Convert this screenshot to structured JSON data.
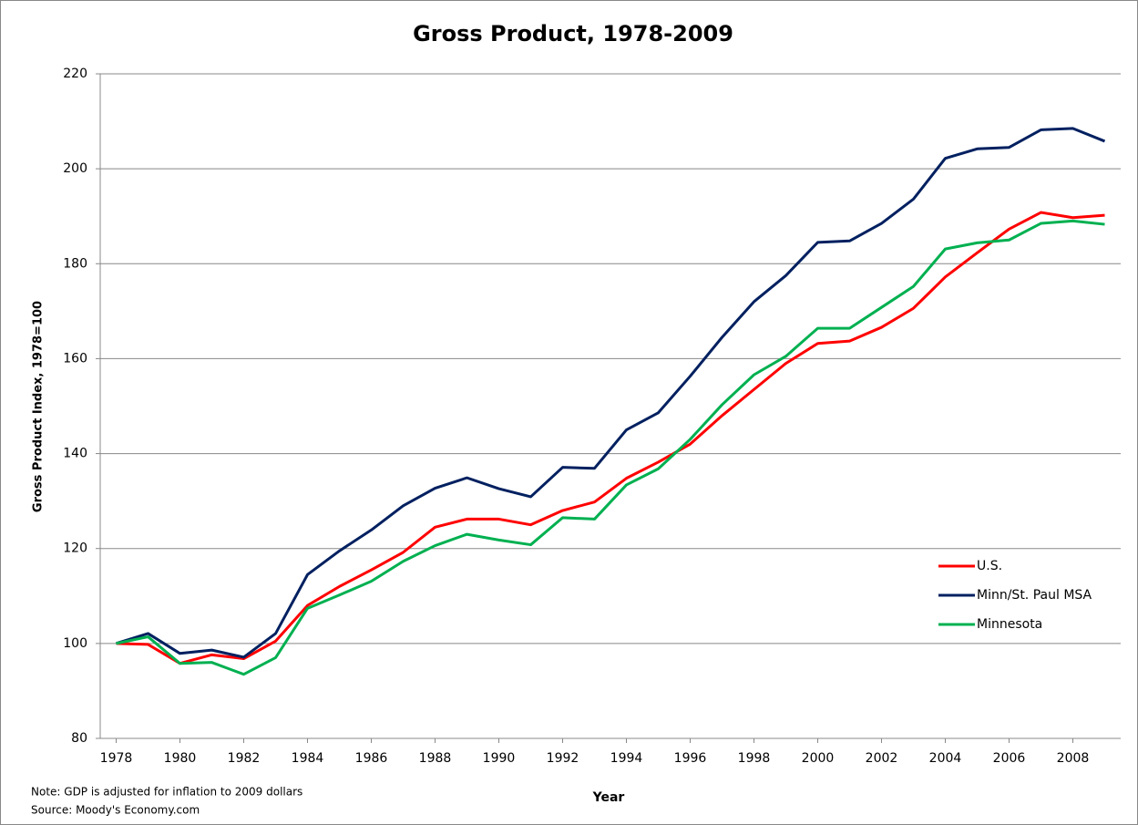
{
  "chart_data": {
    "type": "line",
    "title": "Gross Product, 1978-2009",
    "x_label": "Year",
    "y_label": "Gross Product Index, 1978=100",
    "annotations": [
      "Note: GDP is adjusted for inflation to 2009 dollars",
      "Source: Moody's Economy.com"
    ],
    "x": [
      1978,
      1979,
      1980,
      1981,
      1982,
      1983,
      1984,
      1985,
      1986,
      1987,
      1988,
      1989,
      1990,
      1991,
      1992,
      1993,
      1994,
      1995,
      1996,
      1997,
      1998,
      1999,
      2000,
      2001,
      2002,
      2003,
      2004,
      2005,
      2006,
      2007,
      2008,
      2009
    ],
    "xlim": [
      1977.5,
      2009.5
    ],
    "xticks": [
      1978,
      1980,
      1982,
      1984,
      1986,
      1988,
      1990,
      1992,
      1994,
      1996,
      1998,
      2000,
      2002,
      2004,
      2006,
      2008
    ],
    "ylim": [
      80,
      220
    ],
    "yticks": [
      80,
      100,
      120,
      140,
      160,
      180,
      200,
      220
    ],
    "grid": true,
    "legend": "lower right",
    "series": [
      {
        "name": "U.S.",
        "color": "#ff0000",
        "values": [
          100,
          99.8,
          95.8,
          97.6,
          96.8,
          100.5,
          108,
          112,
          115.5,
          119.2,
          124.5,
          126.2,
          126.2,
          125,
          128,
          129.8,
          134.8,
          138.2,
          142,
          148,
          153.5,
          159,
          163.2,
          163.7,
          166.6,
          170.6,
          177.2,
          182.3,
          187.3,
          190.8,
          189.7,
          190.2
        ]
      },
      {
        "name": "Minn/St. Paul MSA",
        "color": "#002060",
        "values": [
          100,
          102.1,
          97.9,
          98.6,
          97.1,
          102.1,
          114.5,
          119.5,
          123.9,
          129,
          132.7,
          134.9,
          132.6,
          130.9,
          137.1,
          136.9,
          145,
          148.6,
          156.3,
          164.5,
          172,
          177.5,
          184.5,
          184.8,
          188.5,
          193.6,
          202.2,
          204.2,
          204.5,
          208.2,
          208.5,
          205.8
        ]
      },
      {
        "name": "Minnesota",
        "color": "#00b050",
        "values": [
          100,
          101.4,
          95.8,
          96,
          93.5,
          97,
          107.4,
          110.2,
          113.1,
          117.3,
          120.6,
          123,
          121.8,
          120.8,
          126.5,
          126.2,
          133.4,
          136.8,
          143,
          150.3,
          156.6,
          160.5,
          166.4,
          166.4,
          170.8,
          175.2,
          183.1,
          184.4,
          185,
          188.5,
          189,
          188.3
        ]
      }
    ]
  }
}
